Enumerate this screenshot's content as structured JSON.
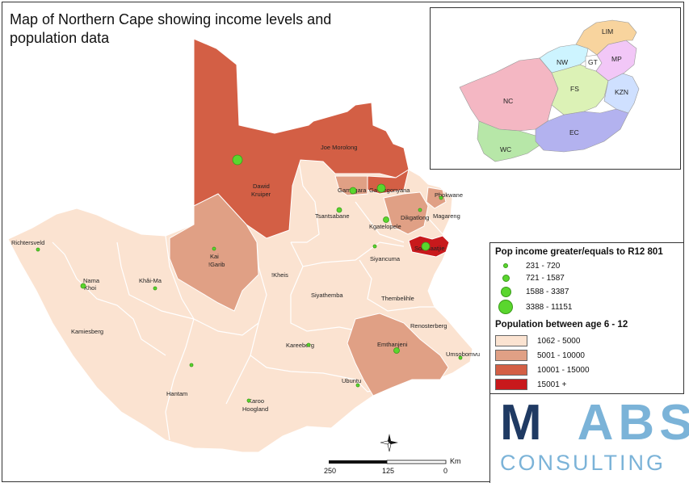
{
  "title": "Map of Northern Cape showing income levels and population data",
  "colors": {
    "class_1062_5000": "#fbe3d1",
    "class_5001_10000": "#e0a085",
    "class_10001_15000": "#d35f45",
    "class_15001_plus": "#c8191c",
    "dot": "#5ad62e"
  },
  "legend": {
    "income_title": "Pop income greater/equals to R12 801",
    "income_classes": [
      "231 - 720",
      "721 - 1587",
      "1588 - 3387",
      "3388 - 11151"
    ],
    "population_title": "Population between age 6 - 12",
    "population_classes": [
      "1062 - 5000",
      "5001 - 10000",
      "10001 - 15000",
      "15001 +"
    ]
  },
  "municipalities": {
    "joe_morolong": "Joe Morolong",
    "dawid_kruiper_1": "Dawid",
    "dawid_kruiper_2": "Kruiper",
    "gamagara": "Gamagara",
    "ga_segonyana": "Ga-Segonyana",
    "phokwane": "Phokwane",
    "tsantsabane": "Tsantsabane",
    "dikgatlong": "Dikgatlong",
    "magareng": "Magareng",
    "kgatelopele": "Kgatelopele",
    "sol_plaatjie": "Sol Plaatjie",
    "richtersveld": "Richtersveld",
    "kai_garib_1": "Kai",
    "kai_garib_2": "!Garib",
    "siyancuma": "Siyancuma",
    "nama_khoi_1": "Nama",
    "nama_khoi_2": "Khoi",
    "khai_ma": "Khâi-Ma",
    "kheis": "!Kheis",
    "siyathemba": "Siyathemba",
    "thembelihle": "Thembelihle",
    "kamiesberg": "Kamiesberg",
    "renosterberg": "Renosterberg",
    "kareeberg": "Kareeberg",
    "emthanjeni": "Emthanjeni",
    "umsobomvu": "Umsobomvu",
    "hantam": "Hantam",
    "ubuntu": "Ubuntu",
    "karoo_hoogland_1": "Karoo",
    "karoo_hoogland_2": "Hoogland"
  },
  "inset": {
    "provinces": [
      "LIM",
      "NW",
      "GT",
      "MP",
      "NC",
      "FS",
      "KZN",
      "EC",
      "WC"
    ]
  },
  "scale": {
    "labels": [
      "250",
      "125",
      "0"
    ],
    "unit": "Km"
  },
  "logo": {
    "mabs": "MABS",
    "consulting": "CONSULTING"
  }
}
